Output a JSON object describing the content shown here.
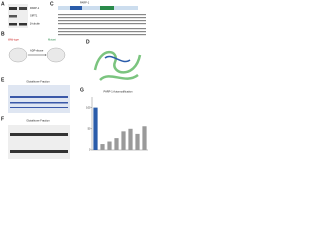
{
  "panels": {
    "a": {
      "label": "A",
      "rows": [
        "PARP-1",
        "SIRT1",
        "β-tubulin"
      ]
    },
    "b": {
      "label": "B",
      "left": "Wild-type",
      "right": "Mutant",
      "middle": "ADP-ribose"
    },
    "c": {
      "label": "C",
      "domain": "PARP-1"
    },
    "d": {
      "label": "D"
    },
    "e": {
      "label": "E",
      "title": "Glutathione Fraction"
    },
    "f": {
      "label": "F",
      "title": "Glutathione Fraction"
    },
    "g": {
      "label": "G",
      "title": "PARP-1 Automodification",
      "chart": {
        "type": "bar",
        "values": [
          100,
          14,
          20,
          28,
          44,
          50,
          38,
          56
        ],
        "colors": [
          "#2a5caa",
          "#9a9a9a"
        ],
        "ylim": [
          0,
          125
        ],
        "yticks": [
          0,
          50,
          100
        ]
      }
    }
  }
}
